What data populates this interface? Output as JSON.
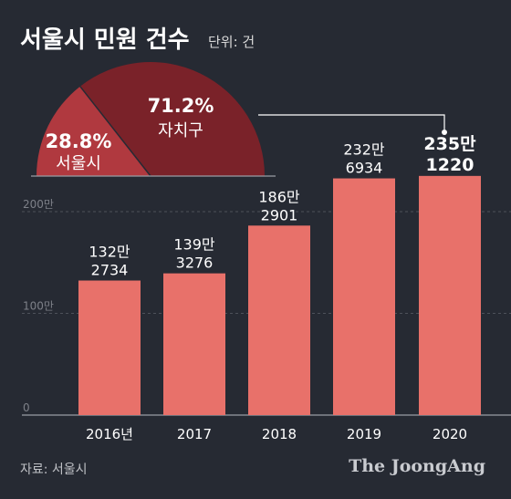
{
  "header": {
    "title": "서울시 민원 건수",
    "unit": "단위: 건"
  },
  "footer": {
    "source": "자료: 서울시",
    "brand": "The JoongAng"
  },
  "chart_data": [
    {
      "type": "bar",
      "categories": [
        "2016년",
        "2017",
        "2018",
        "2019",
        "2020"
      ],
      "values": [
        1322734,
        1393276,
        1862901,
        2326934,
        2351220
      ],
      "value_labels": [
        [
          "132만",
          "2734"
        ],
        [
          "139만",
          "3276"
        ],
        [
          "186만",
          "2901"
        ],
        [
          "232만",
          "6934"
        ],
        [
          "235만",
          "1220"
        ]
      ],
      "highlight_index": 4,
      "ylim": [
        0,
        2500000
      ],
      "yticks": [
        0,
        1000000,
        2000000
      ],
      "ytick_labels": [
        "0",
        "100만",
        "200만"
      ],
      "grid": true,
      "bar_color": "#e8716a"
    },
    {
      "type": "pie",
      "half": true,
      "labels": [
        "서울시",
        "자치구"
      ],
      "values": [
        28.8,
        71.2
      ],
      "value_labels": [
        "28.8%",
        "71.2%"
      ],
      "colors": [
        "#b0393f",
        "#7a2229"
      ]
    }
  ]
}
